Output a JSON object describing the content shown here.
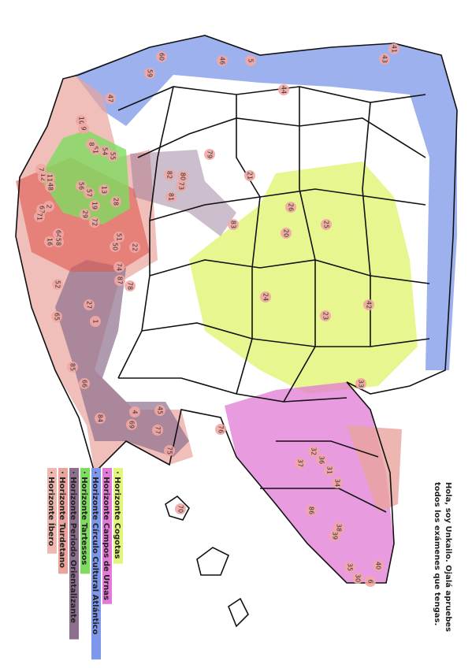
{
  "message": [
    "Hola, soy Unkailo. Ojalá apruebes",
    "todos los exámenes que tengas."
  ],
  "legend": [
    {
      "label": "· Horizonte Cogotas",
      "color": "#e4f57c"
    },
    {
      "label": "· Horizonte Campos de Urnas",
      "color": "#e27ad6"
    },
    {
      "label": "· Horizonte Círculo Cultural Atlántico",
      "color": "#7d97ea"
    },
    {
      "label": "· Horizonte Tartessos",
      "color": "#7fdc60"
    },
    {
      "label": "· Horizonte Periodo Orientalizante",
      "color": "#8d6f8e"
    },
    {
      "label": "· Horizonte Turdetano",
      "color": "#eaa49c"
    },
    {
      "label": "· Horizonte Íbero",
      "color": "#f0b9b0"
    }
  ],
  "sites": [
    60,
    59,
    46,
    5,
    44,
    41,
    43,
    47,
    10,
    9,
    55,
    54,
    61,
    8,
    7,
    12,
    11,
    48,
    56,
    57,
    13,
    28,
    29,
    72,
    19,
    2,
    67,
    71,
    64,
    58,
    16,
    50,
    51,
    22,
    74,
    87,
    78,
    52,
    27,
    1,
    65,
    85,
    66,
    84,
    4,
    69,
    45,
    77,
    75,
    76,
    82,
    73,
    80,
    81,
    79,
    21,
    83,
    26,
    20,
    25,
    24,
    23,
    42,
    33,
    32,
    36,
    37,
    31,
    34,
    86,
    38,
    39,
    35,
    30,
    40,
    6,
    70
  ]
}
